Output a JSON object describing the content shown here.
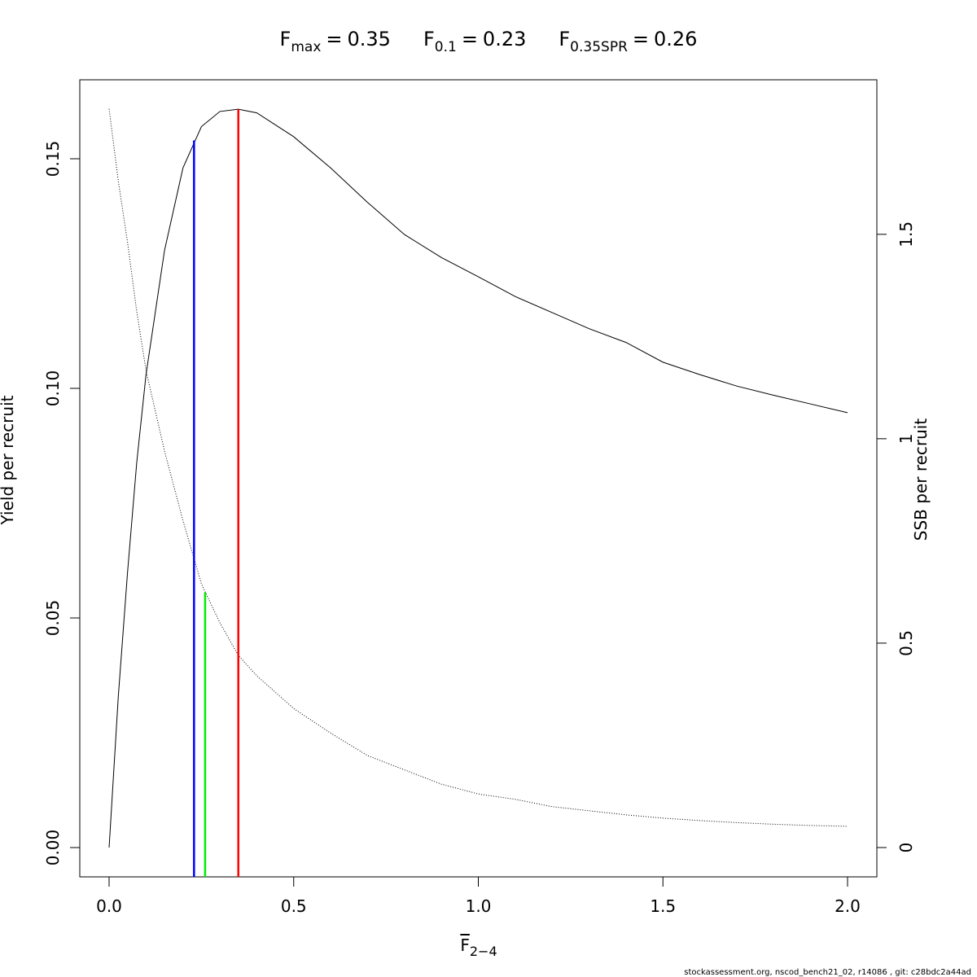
{
  "chart_data": {
    "type": "line",
    "title_parts": [
      {
        "symbol": "F",
        "subscript": "max",
        "relation": "=",
        "value": 0.35,
        "color": "#ff0000",
        "height": 0.1608,
        "axis": "y"
      },
      {
        "symbol": "F",
        "subscript": "0.1",
        "relation": "=",
        "value": 0.23,
        "color": "#0000ff",
        "height": 0.154,
        "axis": "y"
      },
      {
        "symbol": "F",
        "subscript": "0.35SPR",
        "relation": "=",
        "value": 0.26,
        "color": "#00ee00",
        "height": 0.624,
        "axis": "y2"
      }
    ],
    "xlabel": {
      "symbol": "F",
      "subscript": "2−4",
      "overline": true
    },
    "ylabel": "Yield per recruit",
    "y2label": "SSB per recruit",
    "footer": "stockassessment.org, nscod_bench21_02, r14086 , git: c28bdc2a44ad",
    "x": [
      0,
      0.025,
      0.05,
      0.075,
      0.1,
      0.15,
      0.2,
      0.25,
      0.3,
      0.35,
      0.4,
      0.5,
      0.6,
      0.7,
      0.8,
      0.9,
      1.0,
      1.1,
      1.2,
      1.3,
      1.4,
      1.5,
      1.6,
      1.7,
      1.8,
      1.9,
      2.0
    ],
    "series": [
      {
        "color": "#000000",
        "style": "solid",
        "axis": "y",
        "values": [
          0,
          0.033,
          0.06,
          0.084,
          0.103,
          0.13,
          0.148,
          0.157,
          0.1603,
          0.1608,
          0.16,
          0.1548,
          0.148,
          0.1405,
          0.1335,
          0.1285,
          0.1243,
          0.12,
          0.1165,
          0.113,
          0.11,
          0.1057,
          0.103,
          0.1005,
          0.0985,
          0.0966,
          0.0947
        ]
      },
      {
        "color": "#000000",
        "style": "dotted",
        "axis": "y2",
        "values": [
          1.807,
          1.63,
          1.48,
          1.31,
          1.167,
          0.97,
          0.8,
          0.645,
          0.55,
          0.47,
          0.42,
          0.34,
          0.28,
          0.225,
          0.19,
          0.155,
          0.131,
          0.118,
          0.1,
          0.09,
          0.08,
          0.072,
          0.066,
          0.061,
          0.057,
          0.054,
          0.052
        ]
      }
    ],
    "xlim": [
      -0.0794,
      2.0794
    ],
    "ylim": [
      -0.00638,
      0.1672
    ],
    "y2lim": [
      -0.0717,
      1.878
    ],
    "xticks": [
      {
        "value": 0,
        "label": "0.0"
      },
      0.5,
      {
        "value": 1,
        "label": "1.0"
      },
      1.5,
      {
        "value": 2,
        "label": "2.0"
      }
    ],
    "yticks": [
      {
        "value": 0,
        "label": "0.00"
      },
      0.05,
      {
        "value": 0.1,
        "label": "0.10"
      },
      0.15
    ],
    "y2ticks": [
      0,
      0.5,
      1,
      1.5
    ]
  }
}
